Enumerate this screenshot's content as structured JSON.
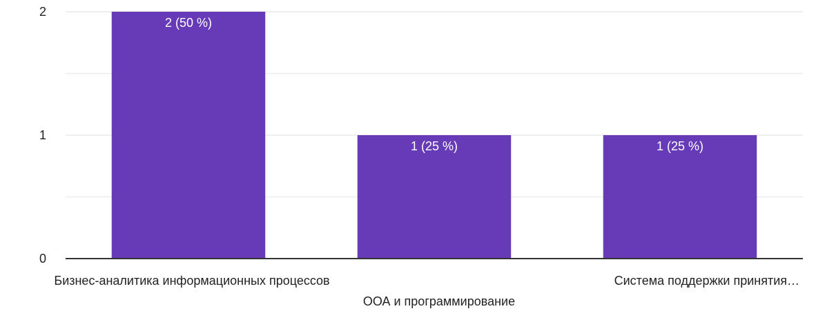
{
  "chart_data": {
    "type": "bar",
    "title": "",
    "xlabel": "",
    "ylabel": "",
    "categories": [
      "Бизнес-аналитика информационных процессов",
      "ООА и программирование",
      "Система поддержки принятия…"
    ],
    "values": [
      2,
      1,
      1
    ],
    "data_labels": [
      "2 (50 %)",
      "1 (25 %)",
      "1 (25 %)"
    ],
    "ylim": [
      0,
      2
    ],
    "y_ticks": [
      0,
      1,
      2
    ],
    "y_tick_labels": [
      "0",
      "1",
      "2"
    ],
    "grid": true,
    "legend": "none",
    "colors": {
      "bar": "#673AB7",
      "grid": "#EEEEEE",
      "axis": "#333333",
      "text": "#222222",
      "label_text": "#FFFFFF"
    }
  }
}
